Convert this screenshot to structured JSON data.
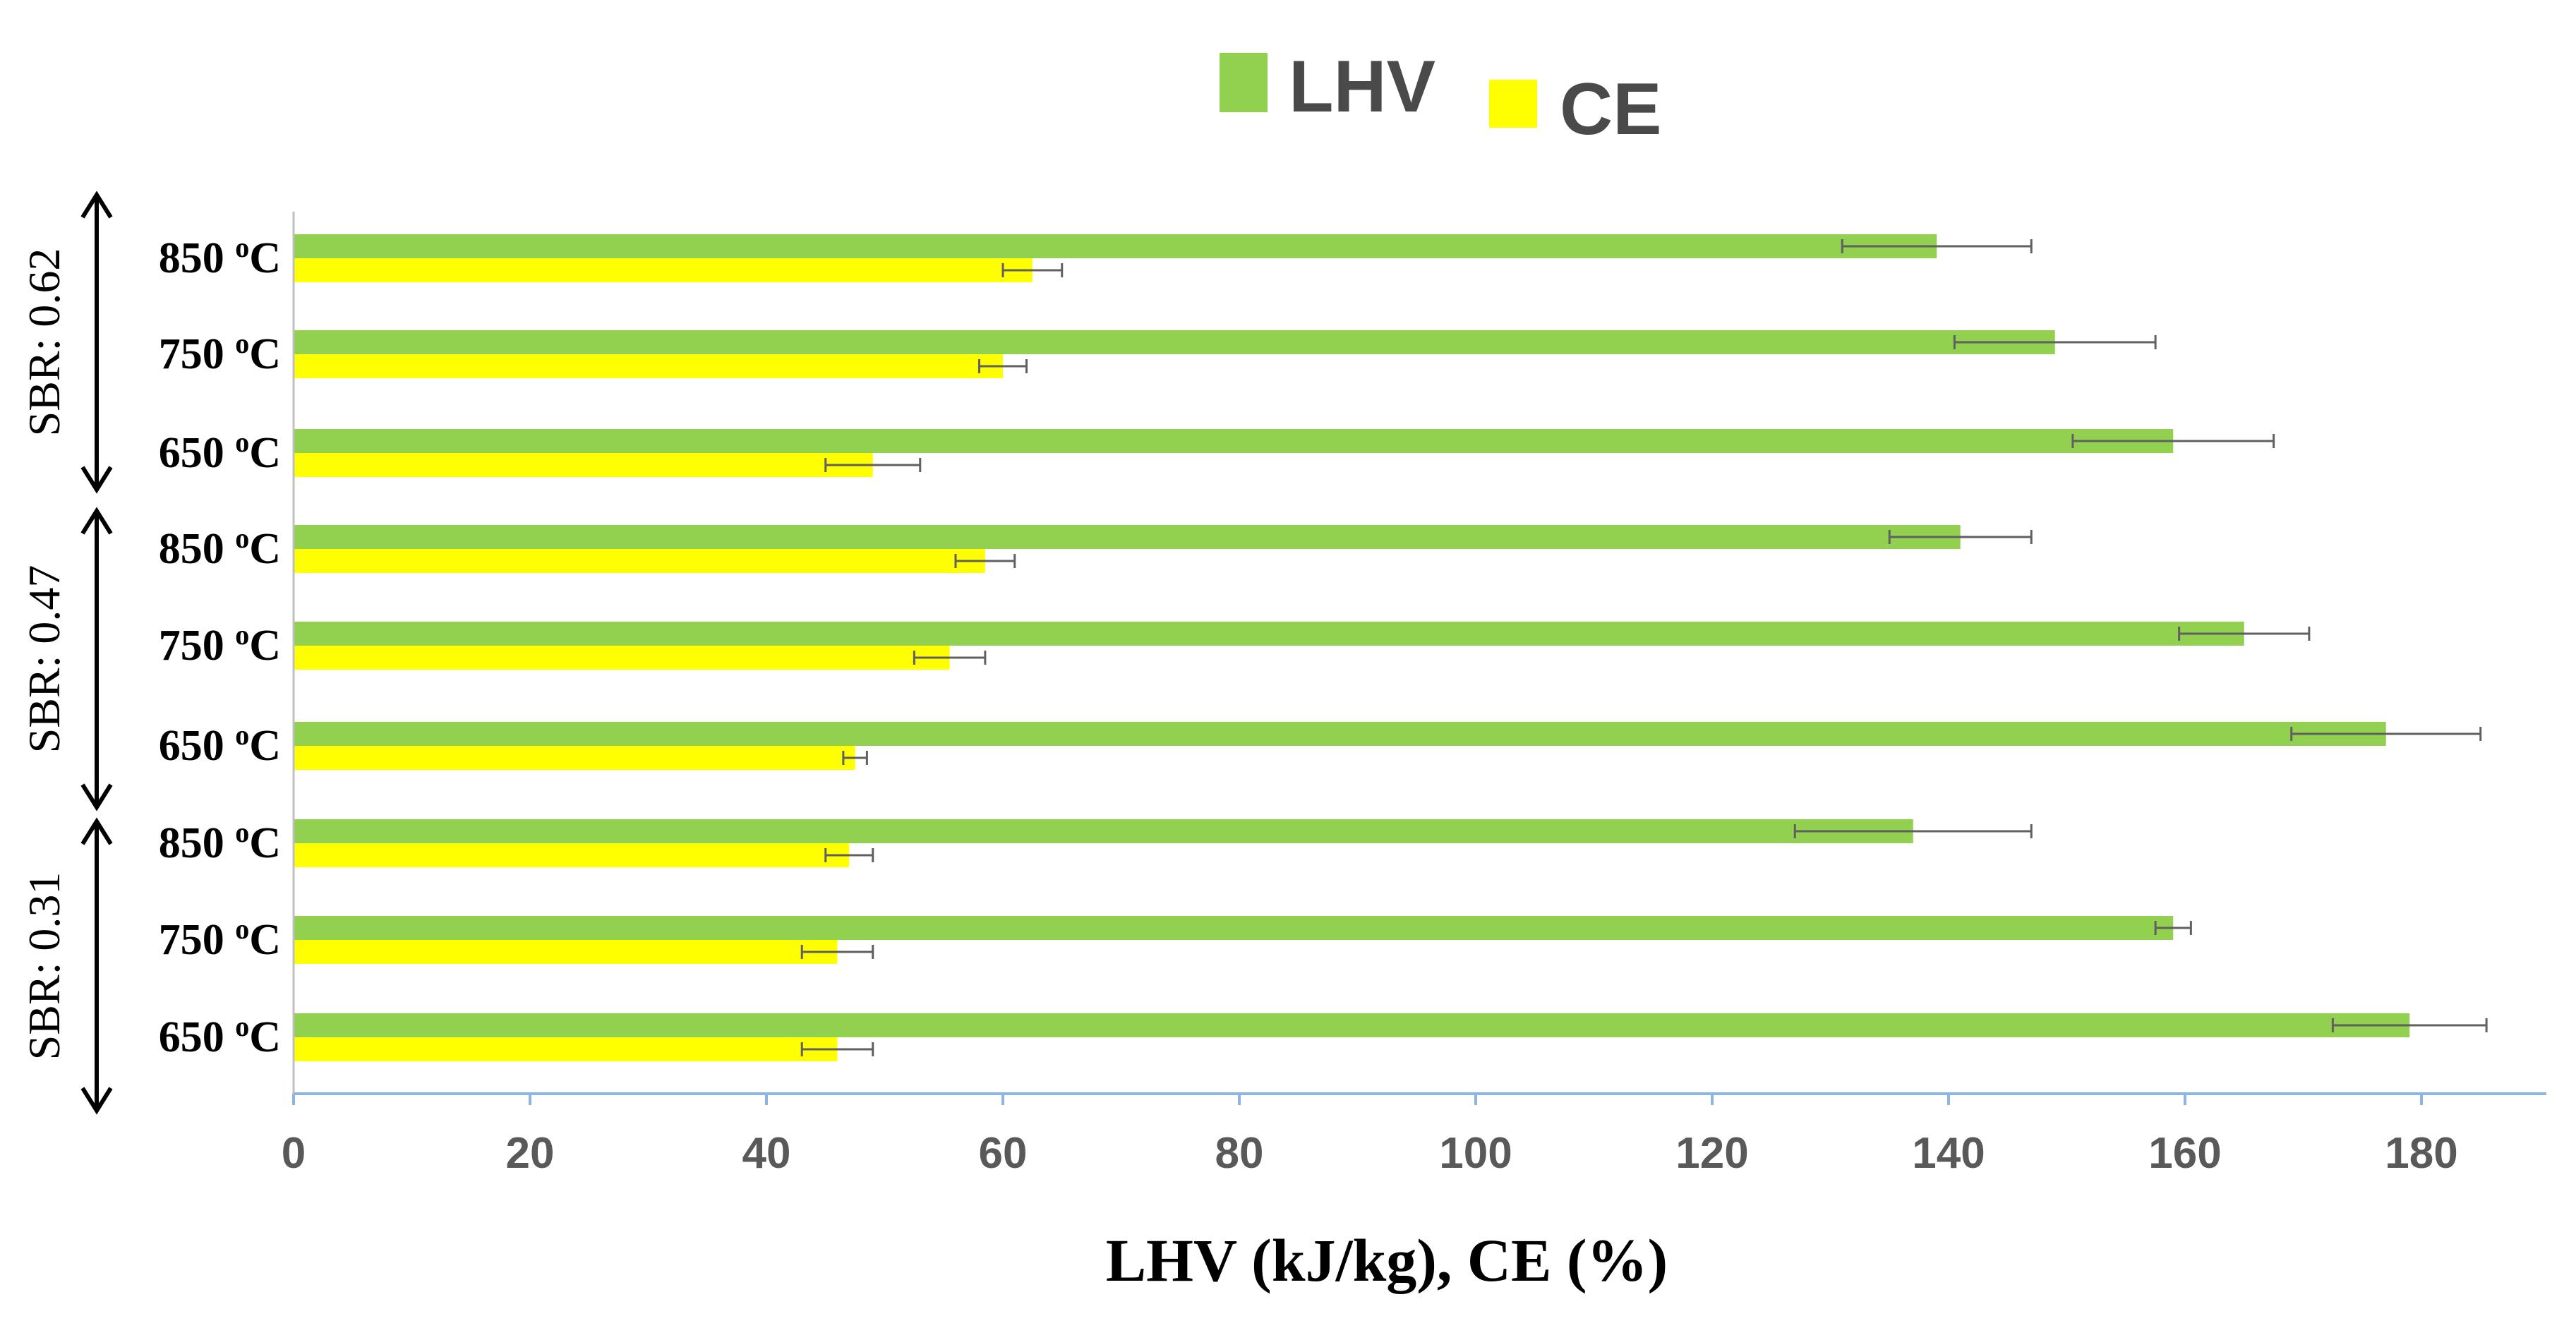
{
  "chart_data": {
    "type": "bar",
    "orientation": "horizontal",
    "categories_top_to_bottom": [
      {
        "group": "SBR: 0.62",
        "label": "850",
        "unit": "C"
      },
      {
        "group": "SBR: 0.62",
        "label": "750",
        "unit": "C"
      },
      {
        "group": "SBR: 0.62",
        "label": "650",
        "unit": "C"
      },
      {
        "group": "SBR: 0.47",
        "label": "850",
        "unit": "C"
      },
      {
        "group": "SBR: 0.47",
        "label": "750",
        "unit": "C"
      },
      {
        "group": "SBR: 0.47",
        "label": "650",
        "unit": "C"
      },
      {
        "group": "SBR: 0.31",
        "label": "850",
        "unit": "C"
      },
      {
        "group": "SBR: 0.31",
        "label": "750",
        "unit": "C"
      },
      {
        "group": "SBR: 0.31",
        "label": "650",
        "unit": "C"
      }
    ],
    "groups_top_to_bottom": [
      "SBR: 0.62",
      "SBR: 0.47",
      "SBR: 0.31"
    ],
    "degree_mark": "o",
    "series": [
      {
        "name": "LHV",
        "color": "#92d050",
        "values": [
          139,
          149,
          159,
          141,
          165,
          177,
          137,
          159,
          179
        ],
        "errors": [
          8,
          8.5,
          8.5,
          6,
          5.5,
          8,
          10,
          1.5,
          6.5
        ]
      },
      {
        "name": "CE",
        "color": "#ffff00",
        "values": [
          62.5,
          60,
          49,
          58.5,
          55.5,
          47.5,
          47,
          46,
          46
        ],
        "errors": [
          2.5,
          2,
          4,
          2.5,
          3,
          1,
          2,
          3,
          3
        ]
      }
    ],
    "xlim": [
      0,
      190
    ],
    "xticks": [
      "0",
      "20",
      "40",
      "60",
      "80",
      "100",
      "120",
      "140",
      "160",
      "180"
    ],
    "xlabel": "LHV (kJ/kg), CE (%)",
    "legend_position": "top-center",
    "axis_color": "#8db4e2",
    "grid": false
  }
}
